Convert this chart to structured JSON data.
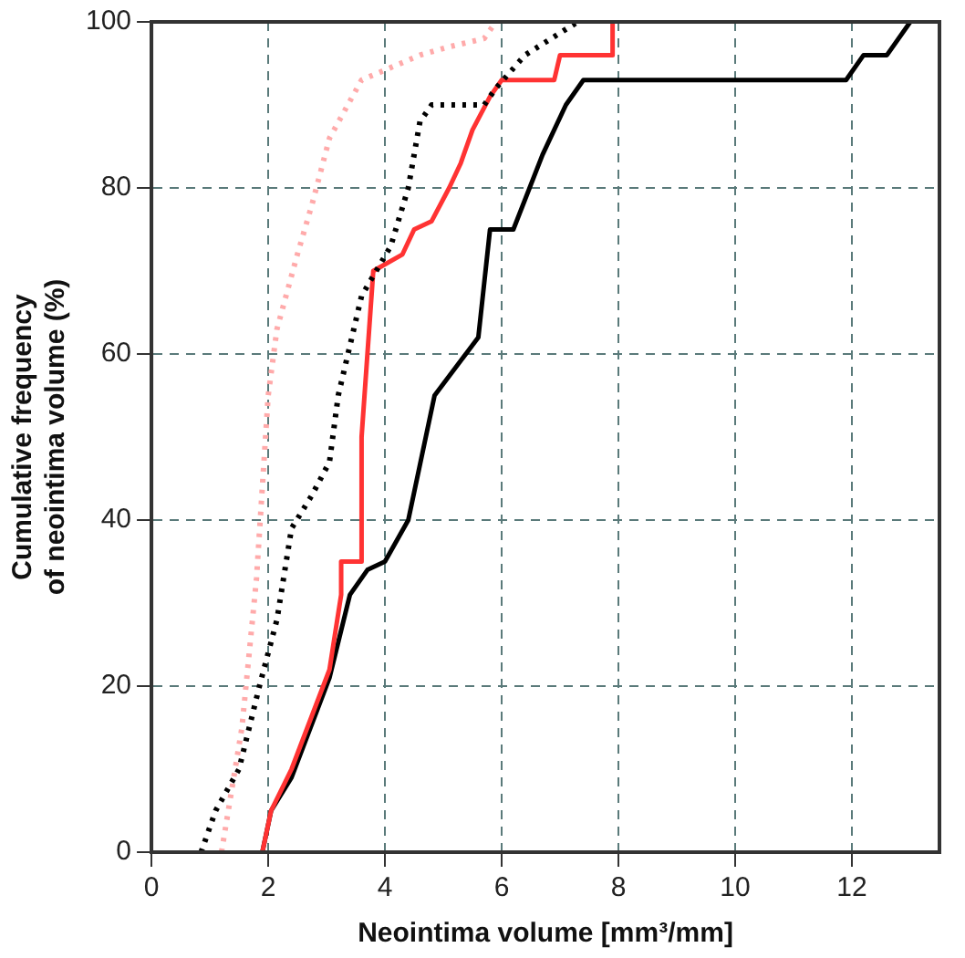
{
  "chart_data": {
    "type": "line",
    "xlabel": "Neointima volume [mm³/mm]",
    "ylabel": "Cumulative frequency\nof neointima volume (%)",
    "xlim": [
      0,
      13.5
    ],
    "xticks": [
      0,
      2,
      4,
      6,
      8,
      10,
      12
    ],
    "ylim": [
      0,
      100
    ],
    "yticks": [
      0,
      20,
      40,
      60,
      80,
      100
    ],
    "grid": true,
    "marker": "none",
    "series": [
      {
        "color": "#ffaaaa",
        "line_style": "dotted",
        "x": [
          1.2,
          1.55,
          1.8,
          2.0,
          2.15,
          2.5,
          2.75,
          3.05,
          3.6,
          4.6,
          5.1,
          5.7,
          5.9
        ],
        "values": [
          0,
          15,
          33,
          55,
          63,
          72,
          78,
          86,
          93,
          96,
          97,
          98,
          100
        ]
      },
      {
        "color": "#000000",
        "line_style": "dotted",
        "x": [
          0.85,
          1.1,
          1.5,
          1.85,
          2.15,
          2.4,
          2.75,
          3.05,
          3.2,
          3.6,
          4.1,
          4.4,
          4.6,
          4.8,
          5.7,
          5.9,
          6.4,
          7.3
        ],
        "values": [
          0,
          5,
          10,
          20,
          28,
          39,
          43,
          47,
          55,
          67,
          73,
          80,
          88,
          90,
          90,
          92,
          96,
          100
        ]
      },
      {
        "color": "#ff3333",
        "line_style": "solid",
        "x": [
          1.9,
          2.05,
          2.4,
          3.05,
          3.25,
          3.25,
          3.6,
          3.6,
          3.8,
          4.3,
          4.5,
          4.8,
          5.1,
          5.3,
          5.5,
          5.8,
          6.0,
          6.9,
          7.0,
          7.9,
          7.9
        ],
        "values": [
          0,
          5,
          10,
          22,
          31,
          35,
          35,
          50,
          70,
          72,
          75,
          76,
          80,
          83,
          87,
          91,
          93,
          93,
          96,
          96,
          100
        ]
      },
      {
        "color": "#000000",
        "line_style": "solid",
        "x": [
          1.9,
          2.05,
          2.4,
          3.05,
          3.4,
          3.7,
          4.0,
          4.4,
          4.7,
          4.85,
          5.6,
          5.8,
          6.2,
          6.7,
          7.1,
          7.4,
          11.9,
          12.2,
          12.6,
          13.0
        ],
        "values": [
          0,
          5,
          9,
          21,
          31,
          34,
          35,
          40,
          50,
          55,
          62,
          75,
          75,
          84,
          90,
          93,
          93,
          96,
          96,
          100
        ]
      }
    ]
  }
}
